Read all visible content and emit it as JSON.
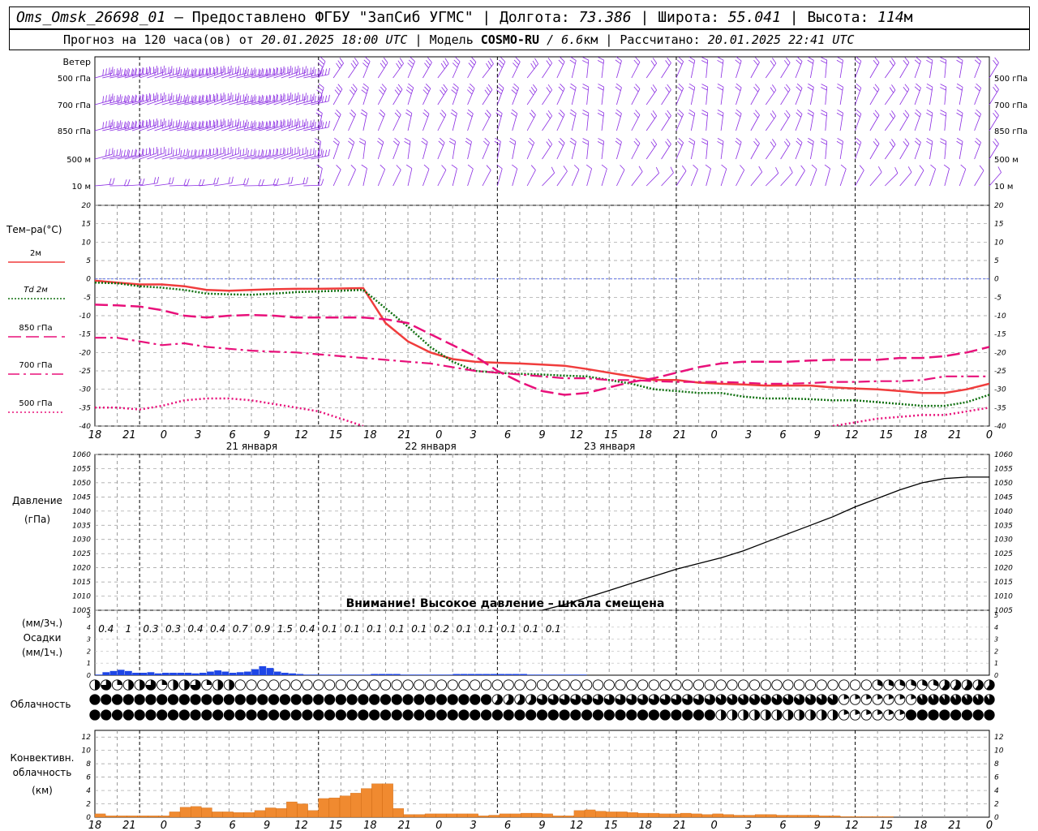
{
  "header": {
    "station": "Oms_Omsk_26698_01",
    "provider": "– Предоставлено ФГБУ \"ЗапСиб УГМС\"",
    "lon_label": "Долгота:",
    "lon_value": "73.386",
    "lat_label": "Широта:",
    "lat_value": "55.041",
    "alt_label": "Высота:",
    "alt_value": "114",
    "alt_unit": "м",
    "forecast_prefix": "Прогноз на 120 часа(ов) от",
    "forecast_time": "20.01.2025 18:00 UTC",
    "model_label": "Модель",
    "model_name": "COSMO-RU",
    "model_res": "/ 6.6",
    "model_res_unit": "км",
    "calc_label": "Рассчитано:",
    "calc_time": "20.01.2025 22:41 UTC"
  },
  "panels": {
    "wind": {
      "title": "Ветер",
      "levels": [
        "500 гПа",
        "700 гПа",
        "850 гПа",
        "500 м",
        "10 м"
      ]
    },
    "temperature": {
      "title": "Тем–ра(°С)",
      "legend": [
        "2м",
        "Td 2м",
        "850 гПа",
        "700 гПа",
        "500 гПа"
      ]
    },
    "pressure": {
      "title1": "Давление",
      "title2": "(гПа)",
      "warning": "Внимание! Высокое давление – шкала смещена"
    },
    "precip": {
      "unit3": "(мм/3ч.)",
      "title": "Осадки",
      "unit1": "(мм/1ч.)"
    },
    "cloud": {
      "title": "Облачность"
    },
    "convective": {
      "title1": "Конвективн.",
      "title2": "облачность",
      "title3": "(км)"
    }
  },
  "dates": [
    "21 января",
    "22 января",
    "23 января"
  ],
  "x_ticks": [
    "18",
    "21",
    "0",
    "3",
    "6",
    "9",
    "12",
    "15",
    "18",
    "21",
    "0",
    "3",
    "6",
    "9",
    "12",
    "15",
    "18",
    "21",
    "0",
    "3",
    "6",
    "9",
    "12",
    "15",
    "18",
    "21",
    "0"
  ],
  "colors": {
    "t2m": "#f03c3c",
    "td": "#107010",
    "t850": "#e8107a",
    "t700": "#e8107a",
    "t500": "#e8107a",
    "barb": "#8a2be2",
    "precip": "#1e46e6",
    "conv": "#f08a30"
  },
  "chart_data": [
    {
      "type": "line",
      "panel": "temperature",
      "ylim": [
        -40,
        20
      ],
      "yticks": [
        -40,
        -35,
        -30,
        -25,
        -20,
        -15,
        -10,
        -5,
        0,
        5,
        10,
        15,
        20
      ],
      "x_hours": [
        0,
        3,
        6,
        9,
        12,
        15,
        18,
        21,
        24,
        27,
        30,
        33,
        36,
        39,
        42,
        45,
        48,
        51,
        54,
        57,
        60,
        63,
        66,
        69,
        72,
        75,
        78,
        81,
        84,
        87,
        90,
        93,
        96,
        99,
        102,
        105,
        108,
        111,
        114,
        117,
        120
      ],
      "series": [
        {
          "name": "2м",
          "values": [
            -0.5,
            -1,
            -1.5,
            -1.5,
            -2,
            -3,
            -3.2,
            -3,
            -2.8,
            -2.7,
            -2.7,
            -2.6,
            -2.5,
            -12,
            -17,
            -20,
            -21.8,
            -22.5,
            -22.8,
            -23,
            -23.3,
            -23.6,
            -24.5,
            -25.5,
            -26.5,
            -27.5,
            -27.5,
            -28.2,
            -28.5,
            -28.7,
            -29,
            -29,
            -29,
            -29.5,
            -29.8,
            -30,
            -30.5,
            -31,
            -31,
            -30,
            -28.5
          ]
        },
        {
          "name": "Td 2м",
          "values": [
            -1,
            -1.2,
            -2,
            -2.4,
            -3,
            -4,
            -4.2,
            -4.3,
            -4,
            -3.6,
            -3.4,
            -3.2,
            -3,
            -8,
            -13,
            -18.5,
            -22.5,
            -25,
            -25.5,
            -25.8,
            -26,
            -26.3,
            -26.5,
            -27.5,
            -28.5,
            -30,
            -30.5,
            -31,
            -31,
            -32,
            -32.5,
            -32.5,
            -32.7,
            -33,
            -33,
            -33.5,
            -34,
            -34.5,
            -34.5,
            -33.5,
            -31.5
          ]
        },
        {
          "name": "850 гПа",
          "values": [
            -7,
            -7.2,
            -7.5,
            -8.5,
            -10,
            -10.5,
            -10,
            -9.8,
            -10,
            -10.5,
            -10.5,
            -10.5,
            -10.5,
            -11,
            -12,
            -15,
            -18,
            -21,
            -25,
            -28,
            -30.5,
            -31.5,
            -31,
            -29.5,
            -28,
            -27,
            -25.5,
            -24,
            -23,
            -22.5,
            -22.5,
            -22.5,
            -22.2,
            -22,
            -22,
            -22,
            -21.5,
            -21.5,
            -21,
            -20,
            -18.5
          ]
        },
        {
          "name": "700 гПа",
          "values": [
            -16,
            -16,
            -17,
            -18,
            -17.5,
            -18.5,
            -19,
            -19.5,
            -19.8,
            -20,
            -20.5,
            -21,
            -21.5,
            -22,
            -22.5,
            -23,
            -24,
            -25,
            -25.5,
            -26,
            -26.5,
            -27,
            -27,
            -27.5,
            -27.5,
            -27.8,
            -28,
            -28,
            -28,
            -28.2,
            -28.5,
            -28.5,
            -28.3,
            -28,
            -28,
            -27.8,
            -27.8,
            -27.5,
            -26.5,
            -26.5,
            -26.5
          ]
        },
        {
          "name": "500 гПа",
          "values": [
            -35,
            -35,
            -35.5,
            -34.5,
            -33,
            -32.5,
            -32.5,
            -33,
            -34,
            -35,
            -36,
            -38,
            -40,
            null,
            null,
            null,
            null,
            null,
            null,
            null,
            null,
            null,
            null,
            null,
            null,
            null,
            null,
            null,
            null,
            null,
            null,
            null,
            null,
            -40,
            -39,
            -38,
            -37.5,
            -37,
            -37,
            -36,
            -35
          ]
        }
      ]
    },
    {
      "type": "line",
      "panel": "pressure",
      "ylim": [
        1005,
        1060
      ],
      "yticks": [
        1005,
        1010,
        1015,
        1020,
        1025,
        1030,
        1035,
        1040,
        1045,
        1050,
        1055,
        1060
      ],
      "x_hours": [
        60,
        63,
        66,
        69,
        72,
        75,
        78,
        81,
        84,
        87,
        90,
        93,
        96,
        99,
        102,
        105,
        108,
        111,
        114,
        117,
        120
      ],
      "series": [
        {
          "name": "",
          "values": [
            1005,
            1007,
            1009.5,
            1012,
            1014.5,
            1017,
            1019.5,
            1021.5,
            1023.5,
            1026,
            1029,
            1032,
            1035,
            1038,
            1041.5,
            1044.5,
            1047.5,
            1050,
            1051.5,
            1052,
            1052
          ]
        }
      ]
    },
    {
      "type": "bar",
      "panel": "precip",
      "ylim": [
        0,
        5
      ],
      "labels_3h": [
        "0.4",
        "1",
        "0.3",
        "0.3",
        "0.4",
        "0.4",
        "0.7",
        "0.9",
        "1.5",
        "0.4",
        "0.1",
        "0.1",
        "0.1",
        "0.1",
        "0.1",
        "0.2",
        "0.1",
        "0.1",
        "0.1",
        "0.1",
        "0.1"
      ],
      "values_1h": [
        0.05,
        0.25,
        0.35,
        0.45,
        0.35,
        0.2,
        0.2,
        0.25,
        0.15,
        0.2,
        0.2,
        0.2,
        0.2,
        0.15,
        0.2,
        0.3,
        0.4,
        0.3,
        0.2,
        0.25,
        0.3,
        0.5,
        0.75,
        0.6,
        0.3,
        0.2,
        0.15,
        0.1,
        0.05,
        0.05,
        0.05,
        0.05,
        0.05,
        0.05,
        0.05,
        0.05,
        0.05,
        0.1,
        0.1,
        0.1,
        0.1,
        0.05,
        0.05,
        0.05,
        0.05,
        0.05,
        0.05,
        0.05,
        0.1,
        0.1,
        0.1,
        0.1,
        0.1,
        0.1,
        0.1,
        0.1,
        0.1,
        0.1,
        0.05,
        0.05,
        0.05,
        0.05,
        0.05,
        0.05,
        0.05,
        0.05,
        0,
        0,
        0,
        0,
        0,
        0,
        0,
        0,
        0,
        0,
        0,
        0,
        0,
        0,
        0,
        0,
        0,
        0,
        0,
        0,
        0,
        0,
        0,
        0,
        0,
        0,
        0,
        0,
        0,
        0,
        0,
        0,
        0,
        0
      ]
    },
    {
      "type": "bar",
      "panel": "convective",
      "ylim": [
        0,
        13
      ],
      "yticks": [
        0,
        2,
        4,
        6,
        8,
        10,
        12
      ],
      "values": [
        0.5,
        0.2,
        0.2,
        0.2,
        0.2,
        0.2,
        0.2,
        0.8,
        1.5,
        1.6,
        1.4,
        0.8,
        0.8,
        0.7,
        0.7,
        1.0,
        1.4,
        1.3,
        2.3,
        2.0,
        1.0,
        2.8,
        2.9,
        3.2,
        3.6,
        4.3,
        5.0,
        5.0,
        1.3,
        0.4,
        0.4,
        0.5,
        0.5,
        0.5,
        0.5,
        0.5,
        0.2,
        0.3,
        0.5,
        0.5,
        0.6,
        0.6,
        0.5,
        0.2,
        0.2,
        1.0,
        1.1,
        0.9,
        0.8,
        0.8,
        0.7,
        0.6,
        0.6,
        0.5,
        0.5,
        0.6,
        0.5,
        0.4,
        0.5,
        0.4,
        0.3,
        0.3,
        0.4,
        0.4,
        0.3,
        0.3,
        0.3,
        0.3,
        0.2,
        0.2,
        0.1,
        0.1,
        0.1,
        0.1,
        0.1,
        0,
        0,
        0,
        0,
        0,
        0,
        0,
        0,
        0
      ]
    }
  ]
}
